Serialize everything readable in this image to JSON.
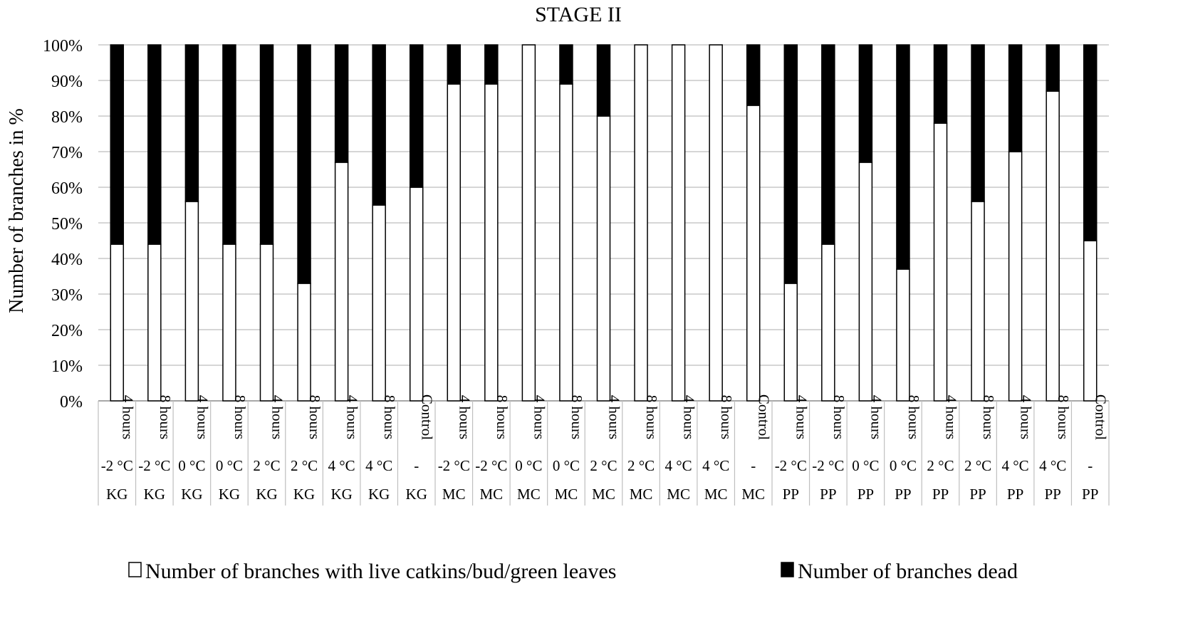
{
  "chart_data": {
    "type": "bar",
    "stacked": true,
    "title": "STAGE II",
    "ylabel": "Number of branches in %",
    "xlabel": "",
    "ylim": [
      0,
      100
    ],
    "yticks": [
      "0%",
      "10%",
      "20%",
      "30%",
      "40%",
      "50%",
      "60%",
      "70%",
      "80%",
      "90%",
      "100%"
    ],
    "grid": true,
    "legend_position": "bottom",
    "categories": [
      {
        "time": "4 hours",
        "temp": "-2 °C",
        "site": "KG"
      },
      {
        "time": "8 hours",
        "temp": "-2 °C",
        "site": "KG"
      },
      {
        "time": "4 hours",
        "temp": "0 °C",
        "site": "KG"
      },
      {
        "time": "8 hours",
        "temp": "0 °C",
        "site": "KG"
      },
      {
        "time": "4 hours",
        "temp": "2 °C",
        "site": "KG"
      },
      {
        "time": "8 hours",
        "temp": "2 °C",
        "site": "KG"
      },
      {
        "time": "4 hours",
        "temp": "4 °C",
        "site": "KG"
      },
      {
        "time": "8 hours",
        "temp": "4 °C",
        "site": "KG"
      },
      {
        "time": "Control",
        "temp": "-",
        "site": "KG"
      },
      {
        "time": "4 hours",
        "temp": "-2 °C",
        "site": "MC"
      },
      {
        "time": "8 hours",
        "temp": "-2 °C",
        "site": "MC"
      },
      {
        "time": "4 hours",
        "temp": "0 °C",
        "site": "MC"
      },
      {
        "time": "8 hours",
        "temp": "0 °C",
        "site": "MC"
      },
      {
        "time": "4 hours",
        "temp": "2 °C",
        "site": "MC"
      },
      {
        "time": "8 hours",
        "temp": "2 °C",
        "site": "MC"
      },
      {
        "time": "4 hours",
        "temp": "4 °C",
        "site": "MC"
      },
      {
        "time": "8 hours",
        "temp": "4 °C",
        "site": "MC"
      },
      {
        "time": "Control",
        "temp": "-",
        "site": "MC"
      },
      {
        "time": "4 hours",
        "temp": "-2 °C",
        "site": "PP"
      },
      {
        "time": "8 hours",
        "temp": "-2 °C",
        "site": "PP"
      },
      {
        "time": "4 hours",
        "temp": "0 °C",
        "site": "PP"
      },
      {
        "time": "8 hours",
        "temp": "0 °C",
        "site": "PP"
      },
      {
        "time": "4 hours",
        "temp": "2 °C",
        "site": "PP"
      },
      {
        "time": "8 hours",
        "temp": "2 °C",
        "site": "PP"
      },
      {
        "time": "4 hours",
        "temp": "4 °C",
        "site": "PP"
      },
      {
        "time": "8 hours",
        "temp": "4 °C",
        "site": "PP"
      },
      {
        "time": "Control",
        "temp": "-",
        "site": "PP"
      }
    ],
    "series": [
      {
        "name": "Number of branches with live catkins/bud/green leaves",
        "color": "#ffffff",
        "values": [
          44,
          44,
          56,
          44,
          44,
          33,
          67,
          55,
          60,
          89,
          89,
          100,
          89,
          80,
          100,
          100,
          100,
          83,
          33,
          44,
          67,
          37,
          78,
          56,
          70,
          87,
          45
        ]
      },
      {
        "name": "Number of branches dead",
        "color": "#000000",
        "values": [
          56,
          56,
          44,
          56,
          56,
          67,
          33,
          45,
          40,
          11,
          11,
          0,
          11,
          20,
          0,
          0,
          0,
          17,
          67,
          56,
          33,
          63,
          22,
          44,
          30,
          13,
          55
        ]
      }
    ]
  }
}
